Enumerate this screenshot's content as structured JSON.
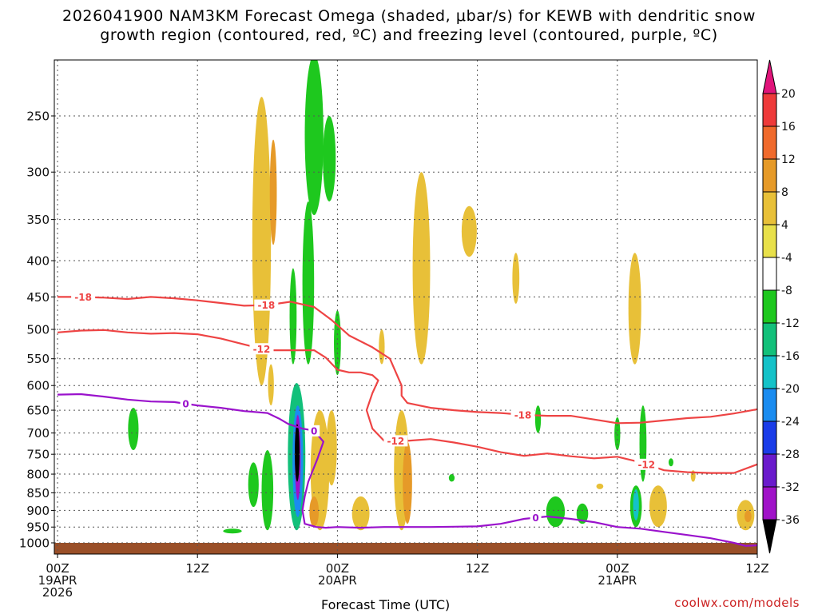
{
  "title": {
    "line1": "2026041900 NAM3KM Forecast Omega (shaded, μbar/s) for KEWB with dendritic snow",
    "line2": "growth region (contoured, red, ºC) and freezing level (contoured, purple, ºC)"
  },
  "credit": "coolwx.com/models",
  "chart_data": {
    "type": "heatmap",
    "title": "2026041900 NAM3KM Forecast Omega (shaded, μbar/s) for KEWB with dendritic snow growth region (contoured, red, ºC) and freezing level (contoured, purple, ºC)",
    "xlabel": "Forecast Time (UTC)",
    "ylabel": "",
    "y_scale": "log-pressure",
    "ylim": [
      1000,
      200
    ],
    "xlim": [
      0,
      60
    ],
    "x_units": "forecast hours from 2026-04-19 00Z",
    "grid": true,
    "x_ticks": [
      {
        "hour": 0,
        "lines": [
          "00Z",
          "19APR",
          "2026"
        ]
      },
      {
        "hour": 12,
        "lines": [
          "12Z"
        ]
      },
      {
        "hour": 24,
        "lines": [
          "00Z",
          "20APR"
        ]
      },
      {
        "hour": 36,
        "lines": [
          "12Z"
        ]
      },
      {
        "hour": 48,
        "lines": [
          "00Z",
          "21APR"
        ]
      },
      {
        "hour": 60,
        "lines": [
          "12Z"
        ]
      }
    ],
    "y_ticks": [
      250,
      300,
      350,
      400,
      450,
      500,
      550,
      600,
      650,
      700,
      750,
      800,
      850,
      900,
      950,
      1000
    ],
    "colorbar": {
      "units": "μbar/s",
      "labels": [
        "20",
        "16",
        "12",
        "8",
        "4",
        "-4",
        "-8",
        "-12",
        "-16",
        "-20",
        "-24",
        "-28",
        "-32",
        "-36"
      ],
      "levels": [
        {
          "range": [
            20,
            99
          ],
          "color": "#e0147a"
        },
        {
          "range": [
            16,
            20
          ],
          "color": "#ee3a3a"
        },
        {
          "range": [
            12,
            16
          ],
          "color": "#f06a2c"
        },
        {
          "range": [
            8,
            12
          ],
          "color": "#e69a28"
        },
        {
          "range": [
            4,
            8
          ],
          "color": "#e8c038"
        },
        {
          "range": [
            0,
            4
          ],
          "color": "#e8e04a"
        },
        {
          "range": [
            -4,
            4
          ],
          "color": "#ffffff"
        },
        {
          "range": [
            -8,
            -4
          ],
          "color": "#1ec81e"
        },
        {
          "range": [
            -12,
            -8
          ],
          "color": "#12c07a"
        },
        {
          "range": [
            -16,
            -12
          ],
          "color": "#14c2c8"
        },
        {
          "range": [
            -20,
            -16
          ],
          "color": "#1a8cf0"
        },
        {
          "range": [
            -24,
            -20
          ],
          "color": "#1a3ce8"
        },
        {
          "range": [
            -28,
            -24
          ],
          "color": "#6a1acc"
        },
        {
          "range": [
            -32,
            -28
          ],
          "color": "#a012c8"
        },
        {
          "range": [
            -36,
            -32
          ],
          "color": "#a8a8a8"
        },
        {
          "range": [
            -99,
            -36
          ],
          "color": "#000000"
        }
      ]
    },
    "blobs": [
      {
        "h": 17.5,
        "p0": 600,
        "p1": 235,
        "w": 1.6,
        "v": 5
      },
      {
        "h": 18.5,
        "p0": 380,
        "p1": 270,
        "w": 0.6,
        "v": 9
      },
      {
        "h": 22.0,
        "p0": 345,
        "p1": 205,
        "w": 1.6,
        "v": -6
      },
      {
        "h": 23.3,
        "p0": 330,
        "p1": 250,
        "w": 1.1,
        "v": -6
      },
      {
        "h": 21.5,
        "p0": 560,
        "p1": 330,
        "w": 1.0,
        "v": -6
      },
      {
        "h": 20.2,
        "p0": 560,
        "p1": 410,
        "w": 0.6,
        "v": -7
      },
      {
        "h": 24.0,
        "p0": 580,
        "p1": 470,
        "w": 0.6,
        "v": -8
      },
      {
        "h": 20.5,
        "p0": 960,
        "p1": 595,
        "w": 1.5,
        "v": -10
      },
      {
        "h": 20.6,
        "p0": 920,
        "p1": 640,
        "w": 0.9,
        "v": -18
      },
      {
        "h": 20.6,
        "p0": 870,
        "p1": 660,
        "w": 0.5,
        "v": -30
      },
      {
        "h": 20.55,
        "p0": 820,
        "p1": 680,
        "w": 0.3,
        "v": -40
      },
      {
        "h": 18.0,
        "p0": 960,
        "p1": 740,
        "w": 1.0,
        "v": -6
      },
      {
        "h": 16.8,
        "p0": 890,
        "p1": 770,
        "w": 0.9,
        "v": -6
      },
      {
        "h": 15.0,
        "p0": 970,
        "p1": 955,
        "w": 1.6,
        "v": -6
      },
      {
        "h": 6.5,
        "p0": 740,
        "p1": 645,
        "w": 0.9,
        "v": -6
      },
      {
        "h": 18.3,
        "p0": 640,
        "p1": 560,
        "w": 0.5,
        "v": 5
      },
      {
        "h": 22.5,
        "p0": 960,
        "p1": 650,
        "w": 1.6,
        "v": 5
      },
      {
        "h": 22.0,
        "p0": 950,
        "p1": 860,
        "w": 0.8,
        "v": 9
      },
      {
        "h": 23.5,
        "p0": 830,
        "p1": 650,
        "w": 0.9,
        "v": 5
      },
      {
        "h": 26.0,
        "p0": 960,
        "p1": 860,
        "w": 1.5,
        "v": 5
      },
      {
        "h": 29.5,
        "p0": 960,
        "p1": 650,
        "w": 1.3,
        "v": 5
      },
      {
        "h": 30.0,
        "p0": 940,
        "p1": 720,
        "w": 0.8,
        "v": 9
      },
      {
        "h": 31.2,
        "p0": 560,
        "p1": 300,
        "w": 1.5,
        "v": 5
      },
      {
        "h": 27.8,
        "p0": 560,
        "p1": 500,
        "w": 0.5,
        "v": 5
      },
      {
        "h": 35.3,
        "p0": 395,
        "p1": 335,
        "w": 1.3,
        "v": 5
      },
      {
        "h": 39.3,
        "p0": 460,
        "p1": 390,
        "w": 0.6,
        "v": 5
      },
      {
        "h": 41.2,
        "p0": 700,
        "p1": 640,
        "w": 0.5,
        "v": -6
      },
      {
        "h": 49.5,
        "p0": 560,
        "p1": 390,
        "w": 1.1,
        "v": 5
      },
      {
        "h": 49.6,
        "p0": 950,
        "p1": 830,
        "w": 1.0,
        "v": -8
      },
      {
        "h": 49.6,
        "p0": 930,
        "p1": 840,
        "w": 0.5,
        "v": -16
      },
      {
        "h": 50.2,
        "p0": 820,
        "p1": 640,
        "w": 0.6,
        "v": -6
      },
      {
        "h": 51.5,
        "p0": 950,
        "p1": 830,
        "w": 1.5,
        "v": 5
      },
      {
        "h": 42.7,
        "p0": 950,
        "p1": 860,
        "w": 1.6,
        "v": -6
      },
      {
        "h": 45.0,
        "p0": 940,
        "p1": 880,
        "w": 1.0,
        "v": -6
      },
      {
        "h": 46.5,
        "p0": 840,
        "p1": 825,
        "w": 0.6,
        "v": 5
      },
      {
        "h": 48.0,
        "p0": 740,
        "p1": 665,
        "w": 0.5,
        "v": -6
      },
      {
        "h": 52.6,
        "p0": 780,
        "p1": 760,
        "w": 0.3,
        "v": -6
      },
      {
        "h": 33.8,
        "p0": 820,
        "p1": 800,
        "w": 0.5,
        "v": -6
      },
      {
        "h": 54.5,
        "p0": 820,
        "p1": 790,
        "w": 0.4,
        "v": 5
      },
      {
        "h": 59.0,
        "p0": 960,
        "p1": 870,
        "w": 1.5,
        "v": 5
      },
      {
        "h": 59.2,
        "p0": 935,
        "p1": 900,
        "w": 0.6,
        "v": 9
      }
    ],
    "series": [
      {
        "name": "-18",
        "color": "#ee4444",
        "labels": [
          {
            "text": "-18",
            "at": 2.2
          },
          {
            "text": "-18",
            "at": 17.9
          },
          {
            "text": "-18",
            "at": 39.9
          }
        ],
        "x": [
          0,
          2,
          4,
          6,
          8,
          10,
          12,
          14,
          16,
          18,
          20,
          22,
          23.5,
          25,
          27,
          28.5,
          29.5,
          29.5,
          30,
          32,
          34,
          36,
          38,
          40,
          42,
          44,
          46,
          48,
          50,
          52,
          54,
          56,
          58,
          60
        ],
        "p": [
          450,
          450,
          451,
          453,
          450,
          452,
          455,
          459,
          463,
          462,
          457,
          465,
          485,
          510,
          530,
          550,
          600,
          620,
          635,
          645,
          650,
          654,
          656,
          660,
          662,
          662,
          670,
          678,
          677,
          672,
          667,
          664,
          657,
          648
        ]
      },
      {
        "name": "-12",
        "color": "#ee4444",
        "labels": [
          {
            "text": "-12",
            "at": 17.5
          },
          {
            "text": "-12",
            "at": 29.0
          },
          {
            "text": "-12",
            "at": 50.5
          }
        ],
        "x": [
          0,
          2,
          4,
          6,
          8,
          10,
          12,
          14,
          16,
          18,
          20,
          22,
          23,
          24,
          25,
          26,
          27,
          27.5,
          27,
          26.5,
          27,
          28,
          30,
          32,
          34,
          36,
          38,
          40,
          42,
          44,
          46,
          48,
          50,
          52,
          54,
          56,
          58,
          60
        ],
        "p": [
          505,
          502,
          501,
          505,
          507,
          506,
          508,
          515,
          525,
          535,
          535,
          535,
          548,
          570,
          575,
          575,
          580,
          590,
          615,
          650,
          690,
          718,
          718,
          714,
          722,
          732,
          745,
          754,
          748,
          755,
          760,
          756,
          770,
          790,
          795,
          797,
          797,
          775
        ]
      },
      {
        "name": "0",
        "color": "#9a12cc",
        "labels": [
          {
            "text": "0",
            "at": 11.0
          },
          {
            "text": "0",
            "at": 22.0
          },
          {
            "text": "0",
            "at": 41.0
          }
        ],
        "x": [
          0,
          2,
          4,
          6,
          8,
          10,
          12,
          14,
          16,
          18,
          19,
          19.8,
          21,
          22,
          22.8,
          22.3,
          21.5,
          21.2,
          21.0,
          21.2,
          22.2,
          23.0,
          24,
          26,
          28,
          30,
          32,
          34,
          36,
          38,
          40,
          42,
          44,
          46,
          48,
          50,
          52,
          54,
          56,
          58,
          59,
          60
        ],
        "p": [
          618,
          617,
          622,
          628,
          632,
          633,
          640,
          645,
          652,
          656,
          668,
          680,
          690,
          695,
          720,
          760,
          820,
          860,
          900,
          940,
          950,
          952,
          950,
          952,
          950,
          950,
          950,
          949,
          948,
          940,
          925,
          918,
          925,
          935,
          950,
          955,
          965,
          975,
          985,
          1000,
          1010,
          1008
        ]
      }
    ]
  }
}
